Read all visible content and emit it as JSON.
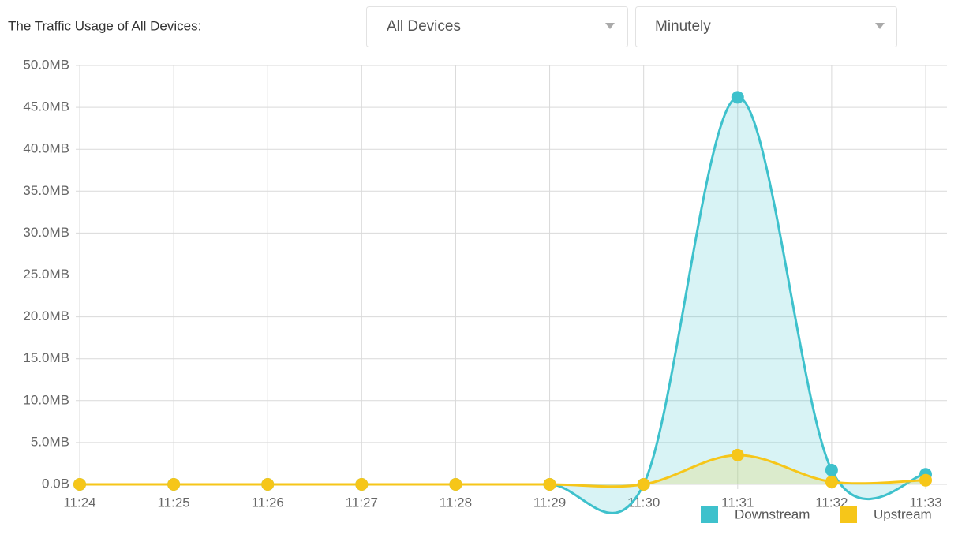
{
  "header": {
    "label": "The Traffic Usage of All Devices:",
    "device_select": "All Devices",
    "interval_select": "Minutely"
  },
  "chart_data": {
    "type": "line",
    "categories": [
      "11:24",
      "11:25",
      "11:26",
      "11:27",
      "11:28",
      "11:29",
      "11:30",
      "11:31",
      "11:32",
      "11:33"
    ],
    "series": [
      {
        "name": "Downstream",
        "color": "#3ec1cc",
        "values": [
          0,
          0,
          0,
          0,
          0,
          0,
          0,
          46.2,
          1.7,
          1.2
        ]
      },
      {
        "name": "Upstream",
        "color": "#f6c619",
        "values": [
          0,
          0,
          0,
          0,
          0,
          0,
          0,
          3.5,
          0.3,
          0.5
        ]
      }
    ],
    "ylim": [
      0,
      50
    ],
    "yticks": [
      {
        "value": 0,
        "label": "0.0B"
      },
      {
        "value": 5,
        "label": "5.0MB"
      },
      {
        "value": 10,
        "label": "10.0MB"
      },
      {
        "value": 15,
        "label": "15.0MB"
      },
      {
        "value": 20,
        "label": "20.0MB"
      },
      {
        "value": 25,
        "label": "25.0MB"
      },
      {
        "value": 30,
        "label": "30.0MB"
      },
      {
        "value": 35,
        "label": "35.0MB"
      },
      {
        "value": 40,
        "label": "40.0MB"
      },
      {
        "value": 45,
        "label": "45.0MB"
      },
      {
        "value": 50,
        "label": "50.0MB"
      }
    ],
    "grid": true,
    "legend": "bottom-right"
  }
}
